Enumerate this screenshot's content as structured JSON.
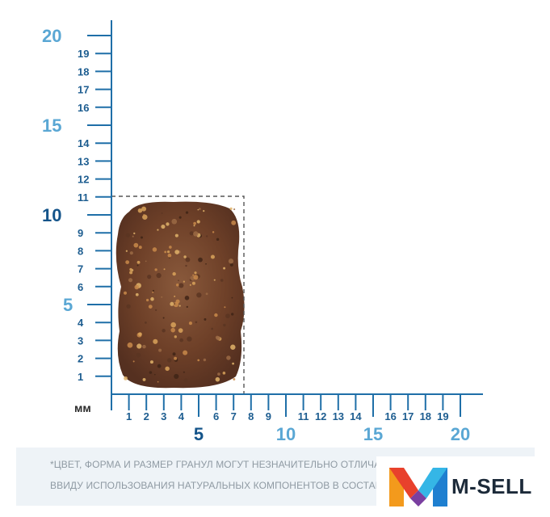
{
  "scale": {
    "unit_label": "мм",
    "y_axis": {
      "minor_labels": [
        "1",
        "2",
        "3",
        "4",
        "6",
        "7",
        "8",
        "9",
        "11",
        "12",
        "13",
        "14",
        "16",
        "17",
        "18",
        "19"
      ],
      "major_labels": [
        "5",
        "10",
        "15",
        "20"
      ]
    },
    "x_axis": {
      "minor_labels": [
        "1",
        "2",
        "3",
        "4",
        "6",
        "7",
        "8",
        "9",
        "11",
        "12",
        "13",
        "14",
        "16",
        "17",
        "18",
        "19"
      ],
      "major_labels": [
        "5",
        "10",
        "15",
        "20"
      ]
    },
    "kibble_size": {
      "width_mm": 8,
      "height_mm": 11
    }
  },
  "disclaimer": {
    "line1": "*ЦВЕТ, ФОРМА И РАЗМЕР ГРАНУЛ МОГУТ НЕЗНАЧИТЕЛЬНО ОТЛИЧАТЬСЯ",
    "line2": "ВВИДУ ИСПОЛЬЗОВАНИЯ НАТУРАЛЬНЫХ КОМПОНЕНТОВ В СОСТАВЕ КО"
  },
  "brand": {
    "name": "M-SELL",
    "colors": {
      "orange": "#f39a1c",
      "red": "#e8412c",
      "blue": "#1e7fd0",
      "cyan": "#35b6e6"
    }
  },
  "colors": {
    "axis": "#1f6fa8",
    "kibble": "#7a4a2e"
  }
}
